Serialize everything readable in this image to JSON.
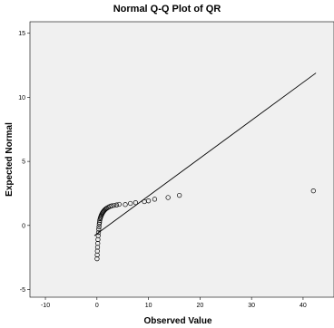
{
  "chart_data": {
    "type": "scatter",
    "title": "Normal Q-Q Plot of QR",
    "xlabel": "Observed Value",
    "ylabel": "Expected Normal",
    "xlim": [
      -13,
      46
    ],
    "ylim": [
      -5.6,
      15.9
    ],
    "xticks": [
      -10,
      0,
      10,
      20,
      30,
      40
    ],
    "yticks": [
      -5,
      0,
      5,
      10,
      15
    ],
    "xtick_labels": [
      "-10",
      "0",
      "10",
      "20",
      "30",
      "40"
    ],
    "ytick_labels": [
      "-5",
      "0",
      "5",
      "10",
      "15"
    ],
    "grid": false,
    "colors": {
      "plot_background": "#f0f0f0",
      "points": "#000000",
      "reference_line": "#000000"
    },
    "reference_line": {
      "x": [
        -0.5,
        42.5
      ],
      "y": [
        -0.8,
        11.9
      ]
    },
    "series": [
      {
        "kind": "points",
        "x": [
          0.02,
          0.05,
          0.08,
          0.12,
          0.16,
          0.2,
          0.25,
          0.3,
          0.35,
          0.4,
          0.45,
          0.5,
          0.55,
          0.62,
          0.7,
          0.78,
          0.86,
          0.95,
          1.05,
          1.15,
          1.28,
          1.42,
          1.58,
          1.75,
          1.95,
          2.2,
          2.5,
          2.85,
          3.3,
          3.8,
          4.3,
          5.5,
          6.5,
          7.5,
          9.2,
          10.0,
          11.2,
          13.8,
          16.0,
          42.0
        ],
        "y": [
          -2.6,
          -2.3,
          -2.0,
          -1.7,
          -1.4,
          -1.1,
          -0.8,
          -0.55,
          -0.3,
          -0.1,
          0.1,
          0.25,
          0.4,
          0.52,
          0.62,
          0.72,
          0.8,
          0.88,
          0.96,
          1.03,
          1.1,
          1.17,
          1.24,
          1.3,
          1.36,
          1.42,
          1.48,
          1.53,
          1.57,
          1.6,
          1.65,
          1.63,
          1.72,
          1.78,
          1.86,
          1.92,
          2.05,
          2.18,
          2.35,
          2.7
        ]
      }
    ]
  }
}
